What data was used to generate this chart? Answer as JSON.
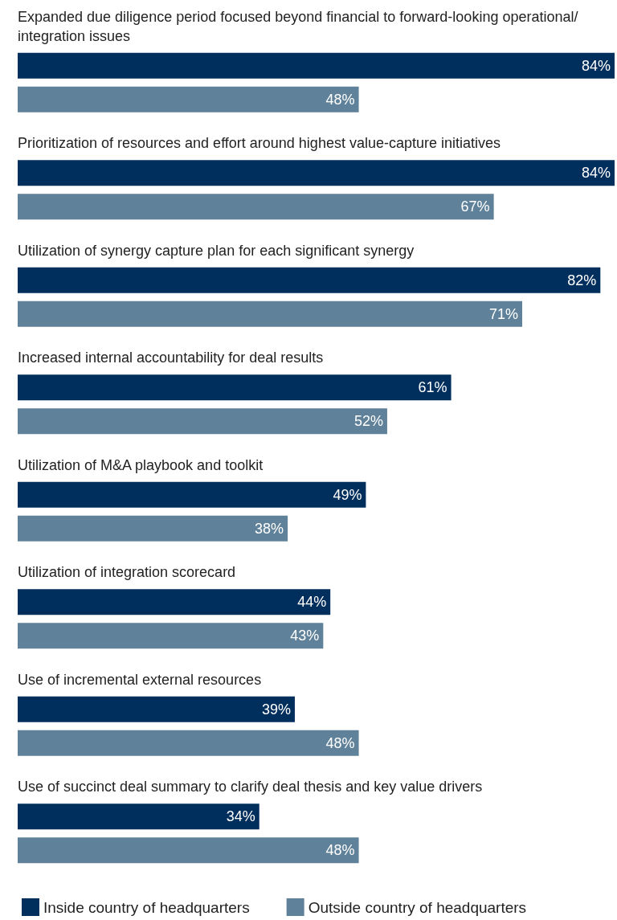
{
  "chart_data": {
    "type": "bar",
    "orientation": "horizontal",
    "legend": "bottom left",
    "categories": [
      "Expanded due diligence period focused beyond financial to forward-looking operational/integration issues",
      "Prioritization of resources and effort around highest value-capture initiatives",
      "Utilization of synergy capture plan for each significant synergy",
      "Increased internal accountability for deal results",
      "Utilization of M&A playbook and toolkit",
      "Utilization of integration scorecard",
      "Use of incremental external resources",
      "Use of succinct deal summary to clarify deal thesis and key value drivers"
    ],
    "series": [
      {
        "name": "Inside country of headquarters",
        "color": "#002e5d",
        "values": [
          84,
          84,
          82,
          61,
          49,
          44,
          39,
          34
        ],
        "value_labels": [
          "84%",
          "84%",
          "82%",
          "61%",
          "49%",
          "44%",
          "39%",
          "34%"
        ]
      },
      {
        "name": "Outside country of headquarters",
        "color": "#5f8199",
        "values": [
          48,
          67,
          71,
          52,
          38,
          43,
          48,
          48
        ],
        "value_labels": [
          "48%",
          "67%",
          "71%",
          "52%",
          "38%",
          "43%",
          "48%",
          "48%"
        ]
      }
    ]
  }
}
